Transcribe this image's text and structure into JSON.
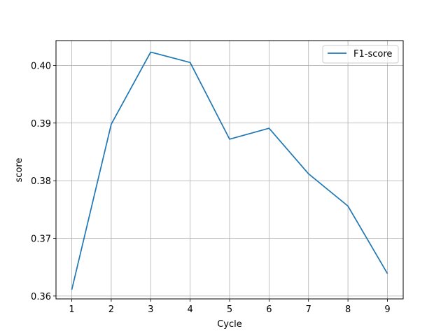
{
  "chart_data": {
    "type": "line",
    "title": "",
    "xlabel": "Cycle",
    "ylabel": "score",
    "x": [
      1,
      2,
      3,
      4,
      5,
      6,
      7,
      8,
      9
    ],
    "xticks": [
      "1",
      "2",
      "3",
      "4",
      "5",
      "6",
      "7",
      "8",
      "9"
    ],
    "yticks": [
      0.36,
      0.37,
      0.38,
      0.39,
      0.4
    ],
    "ytick_labels": [
      "0.36",
      "0.37",
      "0.38",
      "0.39",
      "0.40"
    ],
    "xlim": [
      0.6,
      9.4
    ],
    "ylim": [
      0.3595,
      0.4043
    ],
    "grid": true,
    "legend_position": "top-right",
    "series": [
      {
        "name": "F1-score",
        "color": "#1f77b4",
        "values": [
          0.3611,
          0.3898,
          0.4023,
          0.4005,
          0.3872,
          0.3891,
          0.3812,
          0.3756,
          0.3639
        ]
      }
    ]
  }
}
